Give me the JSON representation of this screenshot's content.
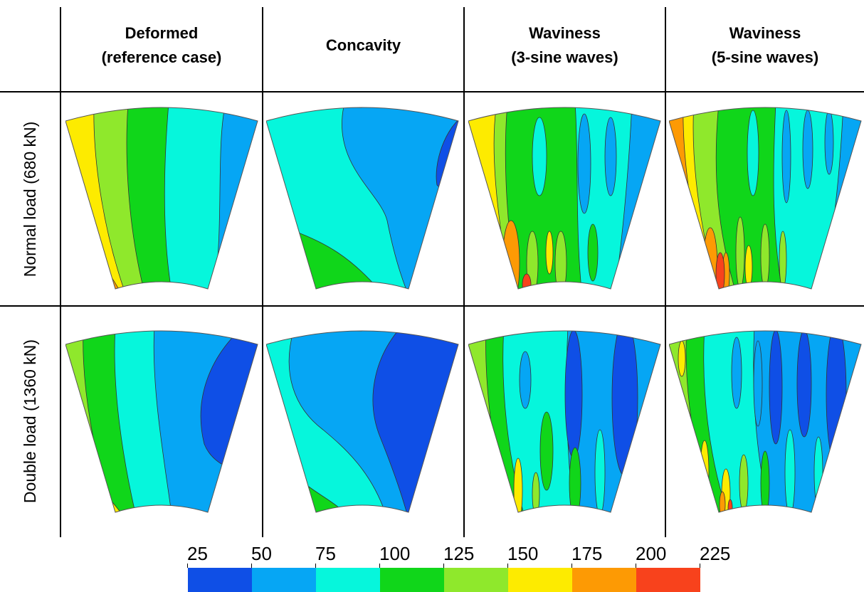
{
  "columns": [
    {
      "line1": "Deformed",
      "line2": "(reference case)"
    },
    {
      "line1": "Concavity",
      "line2": ""
    },
    {
      "line1": "Waviness",
      "line2": "(3-sine waves)"
    },
    {
      "line1": "Waviness",
      "line2": "(5-sine waves)"
    }
  ],
  "rows": [
    {
      "label": "Normal load (680 kN)"
    },
    {
      "label": "Double load (1360 kN)"
    }
  ],
  "colorbar": {
    "ticks": [
      "25",
      "50",
      "75",
      "100",
      "125",
      "150",
      "175",
      "200",
      "225"
    ],
    "colors": [
      "#0f4fe6",
      "#06a6f4",
      "#06f6dc",
      "#10d61a",
      "#8fe82c",
      "#fdeb00",
      "#fd9a04",
      "#f8421c"
    ]
  }
}
